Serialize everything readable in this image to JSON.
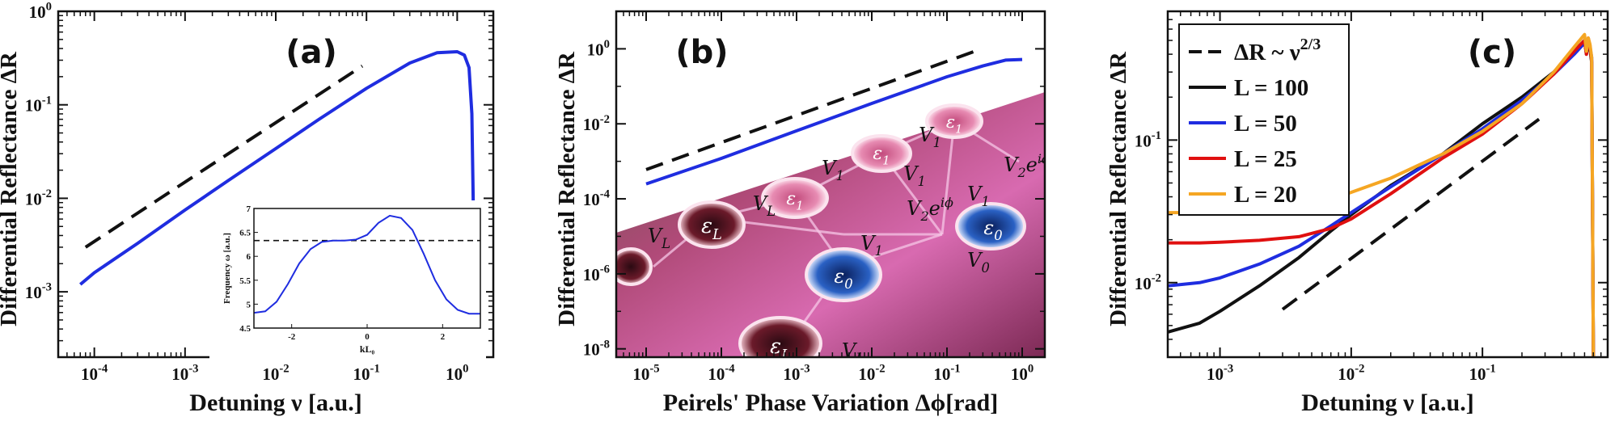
{
  "chart_data": [
    {
      "type": "line",
      "panel_label": "(a)",
      "xlabel": "Detuning ν [a.u.]",
      "ylabel": "Differential Reflectance ΔR",
      "xscale": "log",
      "yscale": "log",
      "xlim": [
        4e-05,
        2.5
      ],
      "ylim": [
        0.0002,
        1
      ],
      "x_ticks": [
        {
          "v": 0.0001,
          "b": "10",
          "e": "-4"
        },
        {
          "v": 0.001,
          "b": "10",
          "e": "-3"
        },
        {
          "v": 0.01,
          "b": "10",
          "e": "-2"
        },
        {
          "v": 0.1,
          "b": "10",
          "e": "-1"
        },
        {
          "v": 1,
          "b": "10",
          "e": "0"
        }
      ],
      "y_ticks": [
        {
          "v": 0.001,
          "b": "10",
          "e": "-3"
        },
        {
          "v": 0.01,
          "b": "10",
          "e": "-2"
        },
        {
          "v": 0.1,
          "b": "10",
          "e": "-1"
        },
        {
          "v": 1,
          "b": "10",
          "e": "0"
        }
      ],
      "series": [
        {
          "style": "solid",
          "color": "#1f2de0",
          "x": [
            7e-05,
            0.0001,
            0.0003,
            0.001,
            0.003,
            0.01,
            0.03,
            0.1,
            0.3,
            0.6,
            1.0,
            1.2,
            1.35,
            1.45,
            1.5,
            1.52,
            1.53
          ],
          "y": [
            0.0012,
            0.0016,
            0.0033,
            0.0075,
            0.0155,
            0.034,
            0.07,
            0.15,
            0.28,
            0.36,
            0.37,
            0.34,
            0.25,
            0.08,
            0.01,
            0.0015,
            0.0002
          ]
        },
        {
          "style": "dashed",
          "color": "#111111",
          "x": [
            8e-05,
            0.09
          ],
          "y": [
            0.003,
            0.26
          ]
        }
      ],
      "inset": {
        "xlabel": "kL₀",
        "ylabel": "Frequency ω [a.u.]",
        "xlim": [
          -3,
          3
        ],
        "ylim": [
          4.5,
          7
        ],
        "x_ticks": [
          -2,
          0,
          2
        ],
        "y_ticks": [
          {
            "v": 4.5,
            "t": "4.5"
          },
          {
            "v": 5,
            "t": "5"
          },
          {
            "v": 5.5,
            "t": "5.5"
          },
          {
            "v": 6,
            "t": "6"
          },
          {
            "v": 6.5,
            "t": "6.5"
          },
          {
            "v": 7,
            "t": "7"
          }
        ],
        "dashed_level": 6.33,
        "series": {
          "x": [
            -3,
            -2.7,
            -2.4,
            -2.1,
            -1.8,
            -1.5,
            -1.2,
            -0.9,
            -0.6,
            -0.3,
            0,
            0.3,
            0.6,
            0.9,
            1.2,
            1.5,
            1.8,
            2.1,
            2.4,
            2.7,
            3
          ],
          "y": [
            4.82,
            4.85,
            5.05,
            5.42,
            5.85,
            6.15,
            6.3,
            6.33,
            6.33,
            6.35,
            6.45,
            6.7,
            6.85,
            6.8,
            6.55,
            6.05,
            5.5,
            5.1,
            4.88,
            4.8,
            4.8
          ]
        }
      }
    },
    {
      "type": "line",
      "panel_label": "(b)",
      "xlabel": "Peirels' Phase Variation  Δϕ[rad]",
      "ylabel": "Differential Reflectance ΔR",
      "xscale": "log",
      "yscale": "log",
      "xlim": [
        4e-06,
        2
      ],
      "ylim": [
        6e-09,
        10
      ],
      "x_ticks": [
        {
          "v": 1e-05,
          "b": "10",
          "e": "-5"
        },
        {
          "v": 0.0001,
          "b": "10",
          "e": "-4"
        },
        {
          "v": 0.001,
          "b": "10",
          "e": "-3"
        },
        {
          "v": 0.01,
          "b": "10",
          "e": "-2"
        },
        {
          "v": 0.1,
          "b": "10",
          "e": "-1"
        },
        {
          "v": 1,
          "b": "10",
          "e": "0"
        }
      ],
      "y_ticks": [
        {
          "v": 1e-08,
          "b": "10",
          "e": "-8"
        },
        {
          "v": 1e-06,
          "b": "10",
          "e": "-6"
        },
        {
          "v": 0.0001,
          "b": "10",
          "e": "-4"
        },
        {
          "v": 0.01,
          "b": "10",
          "e": "-2"
        },
        {
          "v": 1,
          "b": "10",
          "e": "0"
        }
      ],
      "series": [
        {
          "style": "solid",
          "color": "#1f2de0",
          "x": [
            1e-05,
            0.0001,
            0.001,
            0.01,
            0.1,
            0.3,
            0.6,
            1.0
          ],
          "y": [
            0.00025,
            0.0012,
            0.0065,
            0.035,
            0.18,
            0.35,
            0.5,
            0.52
          ]
        },
        {
          "style": "dashed",
          "color": "#111111",
          "x": [
            1e-05,
            0.25
          ],
          "y": [
            0.0006,
            0.9
          ]
        }
      ],
      "illustration_labels": [
        "ε",
        "L",
        "ε",
        "1",
        "ε",
        "0",
        "V",
        "0",
        "V",
        "1",
        "V",
        "2",
        "e",
        "iϕ"
      ]
    },
    {
      "type": "line",
      "panel_label": "(c)",
      "xlabel": "Detuning ν [a.u.]",
      "ylabel": "Differential Reflectance ΔR",
      "xscale": "log",
      "yscale": "log",
      "xlim": [
        0.0004,
        0.9
      ],
      "ylim": [
        0.003,
        0.8
      ],
      "x_ticks": [
        {
          "v": 0.001,
          "b": "10",
          "e": "-3"
        },
        {
          "v": 0.01,
          "b": "10",
          "e": "-2"
        },
        {
          "v": 0.1,
          "b": "10",
          "e": "-1"
        }
      ],
      "y_ticks": [
        {
          "v": 0.01,
          "b": "10",
          "e": "-2"
        },
        {
          "v": 0.1,
          "b": "10",
          "e": "-1"
        }
      ],
      "legend": {
        "placement": "top-left",
        "entries": [
          {
            "text": "ΔR ~ ν",
            "sup": "2/3",
            "style": "dashed",
            "color": "#111111"
          },
          {
            "text": "L = 100",
            "style": "solid",
            "color": "#111111"
          },
          {
            "text": "L = 50",
            "style": "solid",
            "color": "#1f2de0"
          },
          {
            "text": "L = 25",
            "style": "solid",
            "color": "#e01010"
          },
          {
            "text": "L = 20",
            "style": "solid",
            "color": "#f5a623"
          }
        ]
      },
      "series": [
        {
          "style": "dashed",
          "color": "#111111",
          "x": [
            0.003,
            0.27
          ],
          "y": [
            0.0065,
            0.14
          ]
        },
        {
          "style": "solid",
          "color": "#111111",
          "x": [
            0.0004,
            0.0007,
            0.001,
            0.002,
            0.004,
            0.007,
            0.01,
            0.02,
            0.05,
            0.1,
            0.2,
            0.35,
            0.5,
            0.6,
            0.62,
            0.64,
            0.66,
            0.68,
            0.7
          ],
          "y": [
            0.0045,
            0.0052,
            0.0063,
            0.0095,
            0.015,
            0.023,
            0.03,
            0.048,
            0.08,
            0.13,
            0.2,
            0.3,
            0.42,
            0.5,
            0.4,
            0.48,
            0.44,
            0.35,
            0.003
          ]
        },
        {
          "style": "solid",
          "color": "#1f2de0",
          "x": [
            0.0004,
            0.0007,
            0.001,
            0.002,
            0.004,
            0.007,
            0.01,
            0.02,
            0.05,
            0.1,
            0.2,
            0.35,
            0.5,
            0.6,
            0.62,
            0.64,
            0.66,
            0.68,
            0.7
          ],
          "y": [
            0.0095,
            0.01,
            0.0108,
            0.0135,
            0.018,
            0.025,
            0.031,
            0.047,
            0.08,
            0.12,
            0.19,
            0.29,
            0.4,
            0.48,
            0.42,
            0.5,
            0.45,
            0.38,
            0.003
          ]
        },
        {
          "style": "solid",
          "color": "#e01010",
          "x": [
            0.0004,
            0.0007,
            0.001,
            0.002,
            0.004,
            0.007,
            0.01,
            0.02,
            0.05,
            0.1,
            0.2,
            0.35,
            0.5,
            0.6,
            0.62,
            0.64,
            0.66,
            0.68,
            0.7
          ],
          "y": [
            0.019,
            0.019,
            0.0192,
            0.0198,
            0.021,
            0.024,
            0.028,
            0.042,
            0.075,
            0.11,
            0.18,
            0.29,
            0.42,
            0.5,
            0.4,
            0.52,
            0.46,
            0.36,
            0.003
          ]
        },
        {
          "style": "solid",
          "color": "#f5a623",
          "x": [
            0.0004,
            0.0007,
            0.001,
            0.002,
            0.004,
            0.007,
            0.01,
            0.02,
            0.05,
            0.1,
            0.2,
            0.35,
            0.5,
            0.6,
            0.62,
            0.64,
            0.66,
            0.68,
            0.7
          ],
          "y": [
            0.031,
            0.031,
            0.0312,
            0.032,
            0.034,
            0.038,
            0.043,
            0.054,
            0.08,
            0.115,
            0.18,
            0.3,
            0.45,
            0.55,
            0.42,
            0.52,
            0.47,
            0.38,
            0.003
          ]
        }
      ]
    }
  ]
}
